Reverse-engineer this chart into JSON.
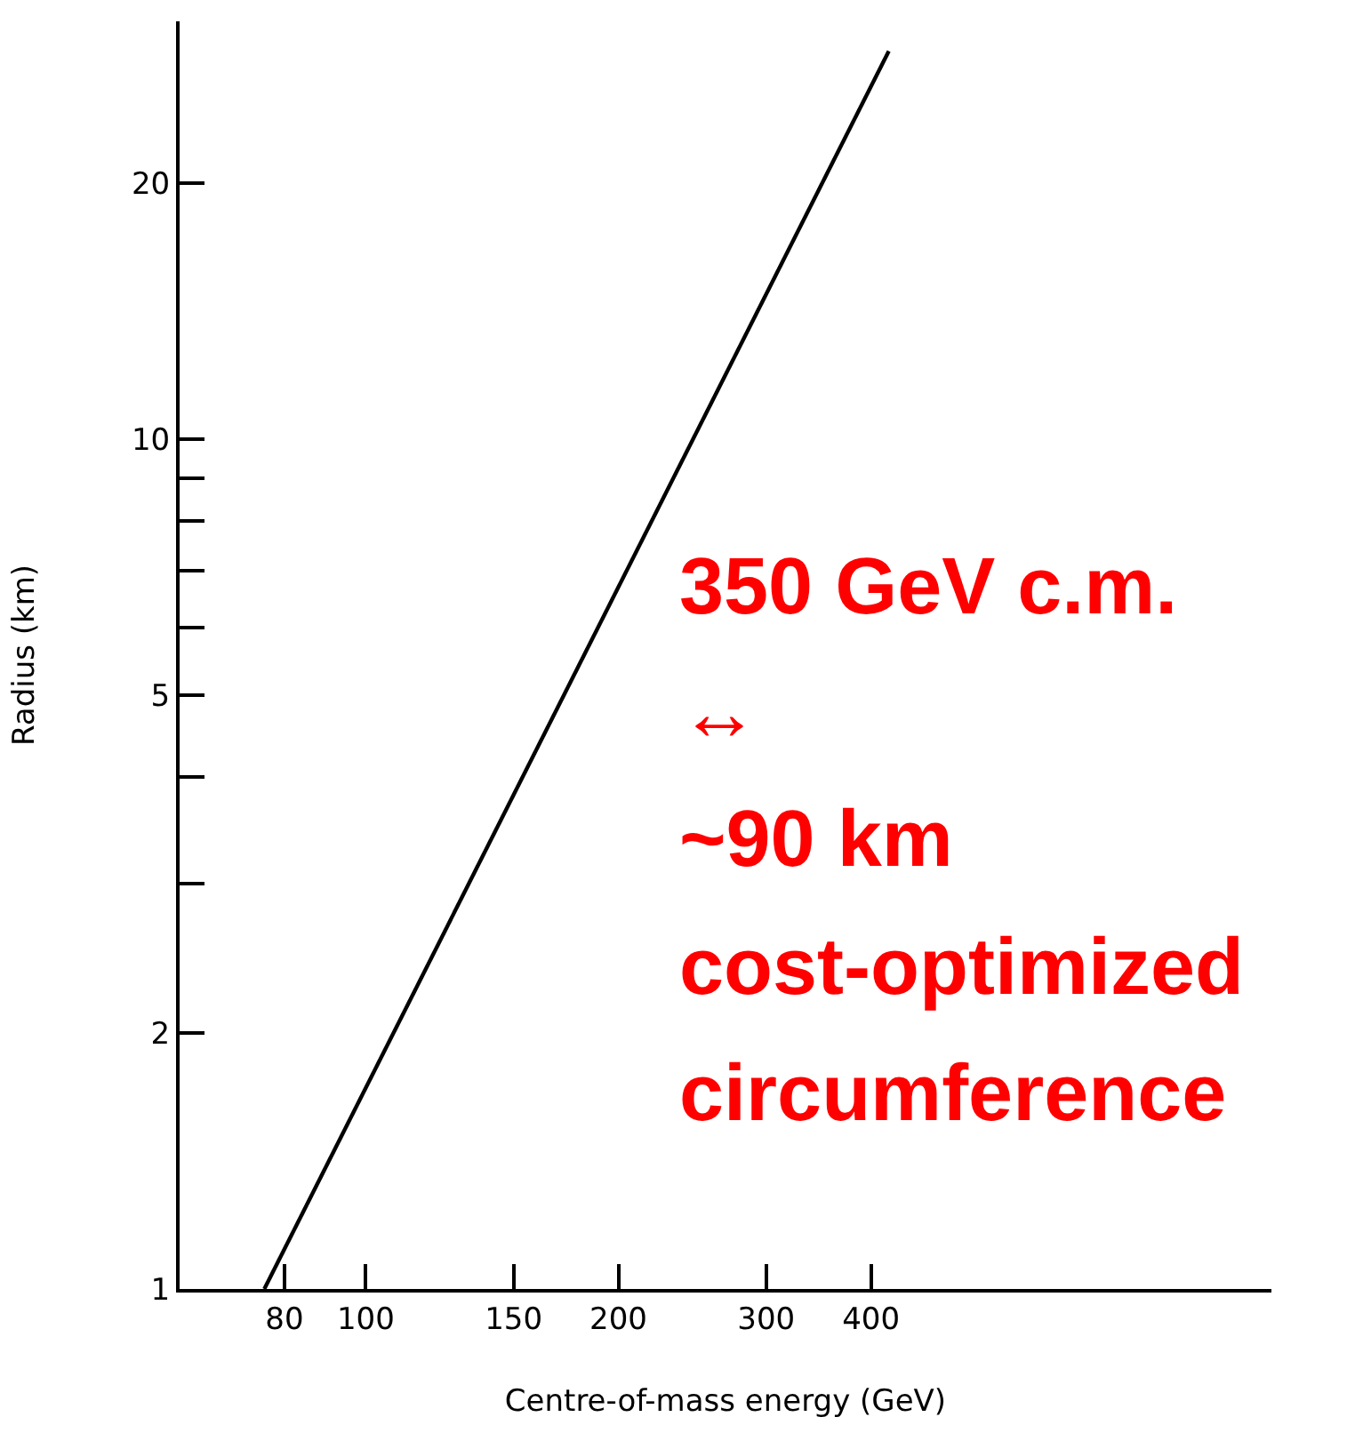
{
  "chart_data": {
    "type": "line",
    "xlabel": "Centre-of-mass energy (GeV)",
    "ylabel": "Radius (km)",
    "log": "xy",
    "grid": false,
    "marker": "none",
    "line_style": "solid",
    "xlim": [
      60,
      1200
    ],
    "ylim": [
      1,
      31
    ],
    "xticks": [
      80,
      100,
      150,
      200,
      300,
      400
    ],
    "yticks": [
      1,
      2,
      {
        "value": 3,
        "label": null
      },
      {
        "value": 4,
        "label": null
      },
      5,
      {
        "value": 6,
        "label": null
      },
      {
        "value": 7,
        "label": null
      },
      {
        "value": 8,
        "label": null
      },
      {
        "value": 9,
        "label": null
      },
      10,
      20
    ],
    "series": [
      {
        "color": "#000000",
        "x": [
          75.7,
          420
        ],
        "values": [
          1,
          28.6
        ]
      }
    ],
    "annotations": [
      "350 GeV c.m.",
      "↔",
      "~90 km",
      "cost-optimized",
      "circumference"
    ]
  }
}
